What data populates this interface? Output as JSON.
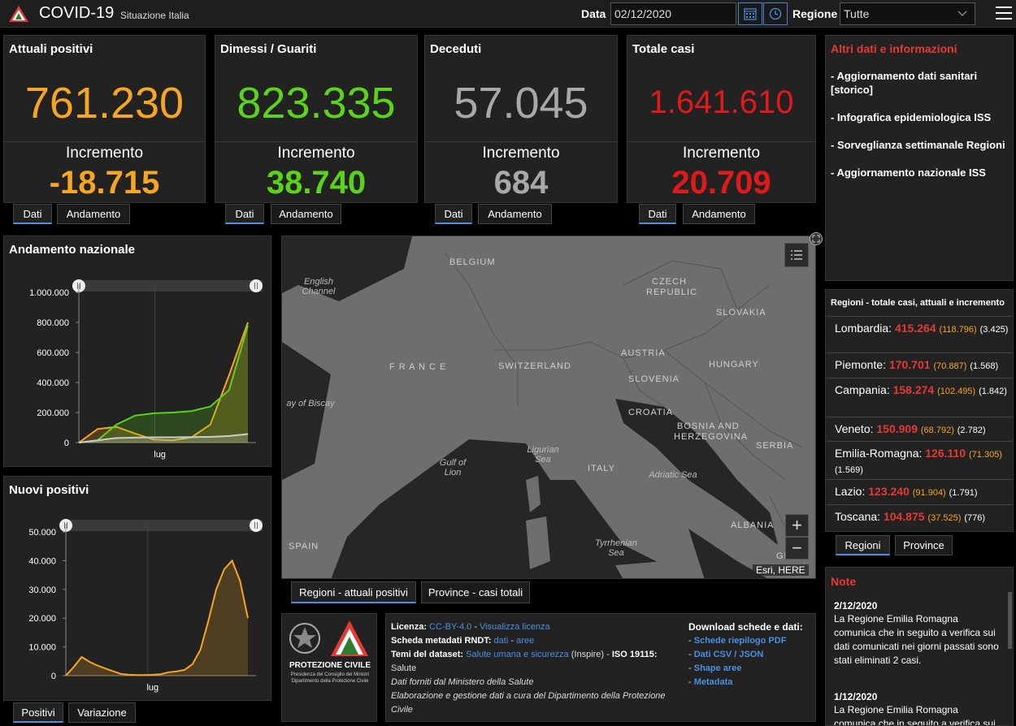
{
  "header": {
    "title": "COVID-19",
    "subtitle": "Situazione Italia",
    "date_label": "Data",
    "date_value": "02/12/2020",
    "region_label": "Regione",
    "region_value": "Tutte"
  },
  "cards": [
    {
      "title": "Attuali positivi",
      "value": "761.230",
      "inc_label": "Incremento",
      "inc_value": "-18.715",
      "color": "#f5a623"
    },
    {
      "title": "Dimessi / Guariti",
      "value": "823.335",
      "inc_label": "Incremento",
      "inc_value": "38.740",
      "color": "#5bd31a"
    },
    {
      "title": "Deceduti",
      "value": "57.045",
      "inc_label": "Incremento",
      "inc_value": "684",
      "color": "#a8a8a8"
    },
    {
      "title": "Totale casi",
      "value": "1.641.610",
      "inc_label": "Incremento",
      "inc_value": "20.709",
      "color": "#e0191b"
    }
  ],
  "card_tabs": {
    "dati": "Dati",
    "andamento": "Andamento"
  },
  "trend_chart": {
    "title": "Andamento nazionale",
    "yticks": [
      "1.000.000",
      "800.000",
      "600.000",
      "400.000",
      "200.000",
      "0"
    ],
    "xlabel": "lug"
  },
  "new_chart": {
    "title": "Nuovi positivi",
    "yticks": [
      "50.000",
      "40.000",
      "30.000",
      "20.000",
      "10.000",
      "0"
    ],
    "xlabel": "lug"
  },
  "chart_tabs": {
    "positivi": "Positivi",
    "variazione": "Variazione"
  },
  "chart_data": [
    {
      "type": "line",
      "title": "Andamento nazionale",
      "xlabel": "lug",
      "ylim": [
        0,
        1000000
      ],
      "series": [
        {
          "color": "#f5a623",
          "values": [
            0,
            90000,
            105000,
            60000,
            20000,
            15000,
            35000,
            120000,
            450000,
            800000
          ]
        },
        {
          "color": "#5bd31a",
          "values": [
            0,
            15000,
            120000,
            180000,
            195000,
            200000,
            210000,
            240000,
            350000,
            780000
          ]
        },
        {
          "color": "#cccccc",
          "values": [
            0,
            15000,
            30000,
            33000,
            35000,
            35000,
            36000,
            38000,
            44000,
            57000
          ]
        }
      ]
    },
    {
      "type": "area",
      "title": "Nuovi positivi",
      "xlabel": "lug",
      "ylim": [
        0,
        50000
      ],
      "series": [
        {
          "color": "#f5a623",
          "values": [
            0,
            3000,
            6500,
            4800,
            3500,
            2500,
            1500,
            600,
            300,
            200,
            200,
            300,
            500,
            1200,
            1500,
            2000,
            4000,
            9000,
            19000,
            30000,
            37000,
            40000,
            33000,
            20000
          ]
        }
      ]
    }
  ],
  "map": {
    "labels": [
      {
        "text": "BELGIUM"
      },
      {
        "text": "CZECH"
      },
      {
        "text": "REPUBLIC"
      },
      {
        "text": "SLOVAKIA"
      },
      {
        "text": "F R A N C E"
      },
      {
        "text": "SWITZERLAND"
      },
      {
        "text": "AUSTRIA"
      },
      {
        "text": "HUNGARY"
      },
      {
        "text": "SLOVENIA"
      },
      {
        "text": "CROATIA"
      },
      {
        "text": "BOSNIA AND"
      },
      {
        "text": "HERZEGOVINA"
      },
      {
        "text": "SERBIA"
      },
      {
        "text": "ITALY"
      },
      {
        "text": "SPAIN"
      },
      {
        "text": "ALBANIA"
      }
    ],
    "seas": [
      {
        "text": "English Channel"
      },
      {
        "text": "ay of Biscay"
      },
      {
        "text": "Ligurian Sea"
      },
      {
        "text": "Gulf of Lion"
      },
      {
        "text": "Adriatic Sea"
      },
      {
        "text": "Tyrrhenian Sea"
      }
    ],
    "attribution": "Esri, HERE",
    "edge_label": "GI"
  },
  "map_tabs": {
    "regioni": "Regioni - attuali positivi",
    "province": "Province - casi totali"
  },
  "info": {
    "title": "Altri dati e informazioni",
    "links": [
      "- Aggiornamento dati sanitari [storico]",
      "- Infografica epidemiologica ISS",
      "- Sorveglianza settimanale Regioni",
      "- Aggiornamento nazionale ISS"
    ]
  },
  "regions": {
    "title": "Regioni - totale casi, attuali e incremento",
    "rows": [
      {
        "name": "Lombardia:",
        "total": "415.264",
        "current": "(118.796)",
        "increment": "(3.425)"
      },
      {
        "name": "Piemonte:",
        "total": "170.701",
        "current": "(70.887)",
        "increment": "(1.568)"
      },
      {
        "name": "Campania:",
        "total": "158.274",
        "current": "(102.495)",
        "increment": "(1.842)"
      },
      {
        "name": "Veneto:",
        "total": "150.909",
        "current": "(68.792)",
        "increment": "(2.782)"
      },
      {
        "name": "Emilia-Romagna:",
        "total": "126.110",
        "current": "(71.305)",
        "increment": "(1.569)"
      },
      {
        "name": "Lazio:",
        "total": "123.240",
        "current": "(91.904)",
        "increment": "(1.791)"
      },
      {
        "name": "Toscana:",
        "total": "104.875",
        "current": "(37.525)",
        "increment": "(776)"
      }
    ]
  },
  "region_tabs": {
    "regioni": "Regioni",
    "province": "Province"
  },
  "notes": {
    "title": "Note",
    "items": [
      {
        "date": "2/12/2020",
        "text": "La Regione Emilia Romagna comunica che in seguito a verifica sui dati comunicati nei giorni passati sono stati eliminati 2 casi."
      },
      {
        "date": "1/12/2020",
        "text": "La Regione Emilia Romagna comunica che in seguito a verifica sui dati"
      }
    ]
  },
  "footer": {
    "logo_text": "PROTEZIONE CIVILE",
    "logo_sub1": "Presidenza del Consiglio dei Ministri",
    "logo_sub2": "Dipartimento della Protezione Civile",
    "licenza_label": "Licenza:",
    "licenza_value": "CC-BY-4.0",
    "licenza_link": "Visualizza licenza",
    "rndt_label": "Scheda metadati RNDT:",
    "rndt_link1": "dati",
    "rndt_link2": "aree",
    "temi_label": "Temi del dataset:",
    "temi_link": "Salute umana e sicurezza",
    "temi_rest": "(Inspire) -",
    "iso_label": "ISO 19115:",
    "iso_value": "Salute",
    "credit1": "Dati forniti dal Ministero della Salute",
    "credit2": "Elaborazione e gestione dati a cura del Dipartimento della Protezione Civile",
    "download_title": "Download schede e dati:",
    "downloads": [
      "Schede riepilogo PDF",
      "Dati CSV / JSON",
      "Shape aree",
      "Metadata"
    ]
  }
}
